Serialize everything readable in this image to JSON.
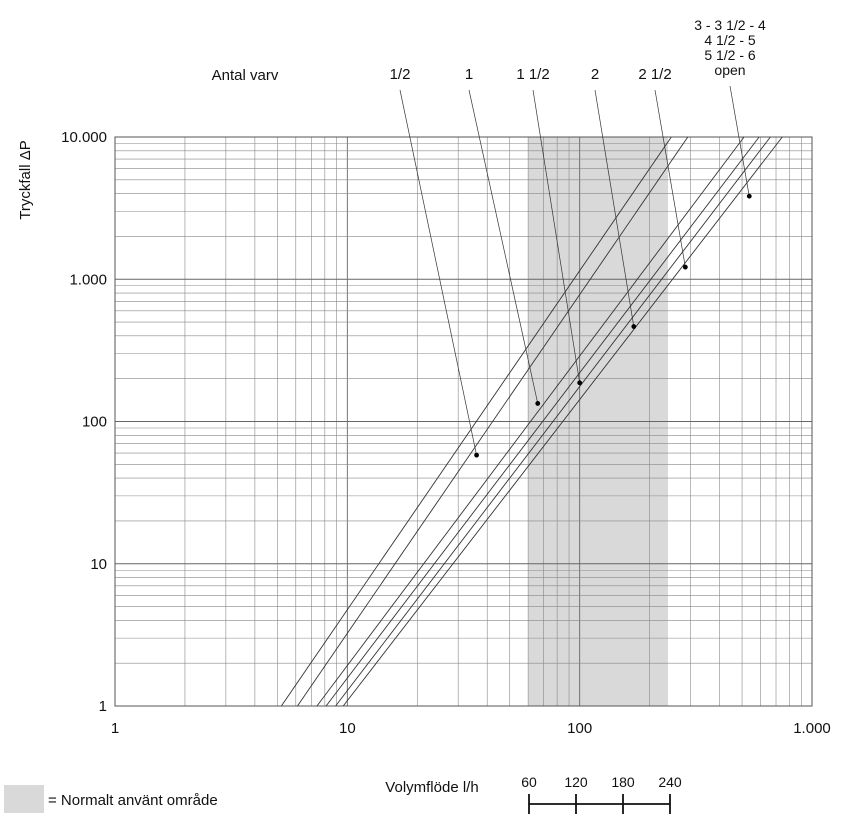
{
  "chart_data": {
    "type": "line",
    "title": "",
    "xlabel": "Volymflöde l/h",
    "ylabel": "Tryckfall ΔP",
    "xscale": "log",
    "yscale": "log",
    "xlim": [
      1,
      1000
    ],
    "ylim": [
      1,
      10000
    ],
    "grid": true,
    "x_ticks": [
      {
        "value": 1,
        "label": "1"
      },
      {
        "value": 10,
        "label": "10"
      },
      {
        "value": 100,
        "label": "100"
      },
      {
        "value": 1000,
        "label": "1.000"
      }
    ],
    "y_ticks": [
      {
        "value": 1,
        "label": "1"
      },
      {
        "value": 10,
        "label": "10"
      },
      {
        "value": 100,
        "label": "100"
      },
      {
        "value": 1000,
        "label": "1.000"
      },
      {
        "value": 10000,
        "label": "10.000"
      }
    ],
    "header_label": "Antal varv",
    "shaded_region": {
      "x_from": 60,
      "x_to": 240,
      "color": "#d9d9d9"
    },
    "series": [
      {
        "name": "1/2",
        "x": [
          5.2,
          248
        ],
        "y": [
          1,
          10000
        ],
        "marker": {
          "x": 36,
          "y": 58
        },
        "label_x": 400,
        "label_y": 73
      },
      {
        "name": "1",
        "x": [
          6.1,
          292
        ],
        "y": [
          1,
          10000
        ],
        "marker": {
          "x": 66,
          "y": 134
        },
        "label_x": 469,
        "label_y": 73
      },
      {
        "name": "1 1/2",
        "x": [
          7.4,
          510
        ],
        "y": [
          1,
          10000
        ],
        "marker": {
          "x": 100,
          "y": 187
        },
        "label_x": 533,
        "label_y": 73
      },
      {
        "name": "2",
        "x": [
          8.1,
          592
        ],
        "y": [
          1,
          10000
        ],
        "marker": {
          "x": 171,
          "y": 465
        },
        "label_x": 595,
        "label_y": 73
      },
      {
        "name": "2 1/2",
        "x": [
          8.9,
          662
        ],
        "y": [
          1,
          10000
        ],
        "marker": {
          "x": 285,
          "y": 1217
        },
        "label_x": 655,
        "label_y": 73
      },
      {
        "name": "3 - 3 1/2 - 4 / 4 1/2 - 5 / 5 1/2 - 6 / open",
        "x": [
          9.6,
          745
        ],
        "y": [
          1,
          10000
        ],
        "marker": {
          "x": 537,
          "y": 3835
        },
        "label_x": 730,
        "label_y": 30
      }
    ],
    "open_label_lines": [
      "3 - 3 1/2 - 4",
      "4 1/2 - 5",
      "5 1/2 - 6",
      "open"
    ],
    "legend": {
      "text": "= Normalt använt område",
      "swatch_color": "#d9d9d9"
    },
    "subscale": {
      "ticks": [
        {
          "value": 60,
          "label": "60"
        },
        {
          "value": 120,
          "label": "120"
        },
        {
          "value": 180,
          "label": "180"
        },
        {
          "value": 240,
          "label": "240"
        }
      ]
    }
  }
}
